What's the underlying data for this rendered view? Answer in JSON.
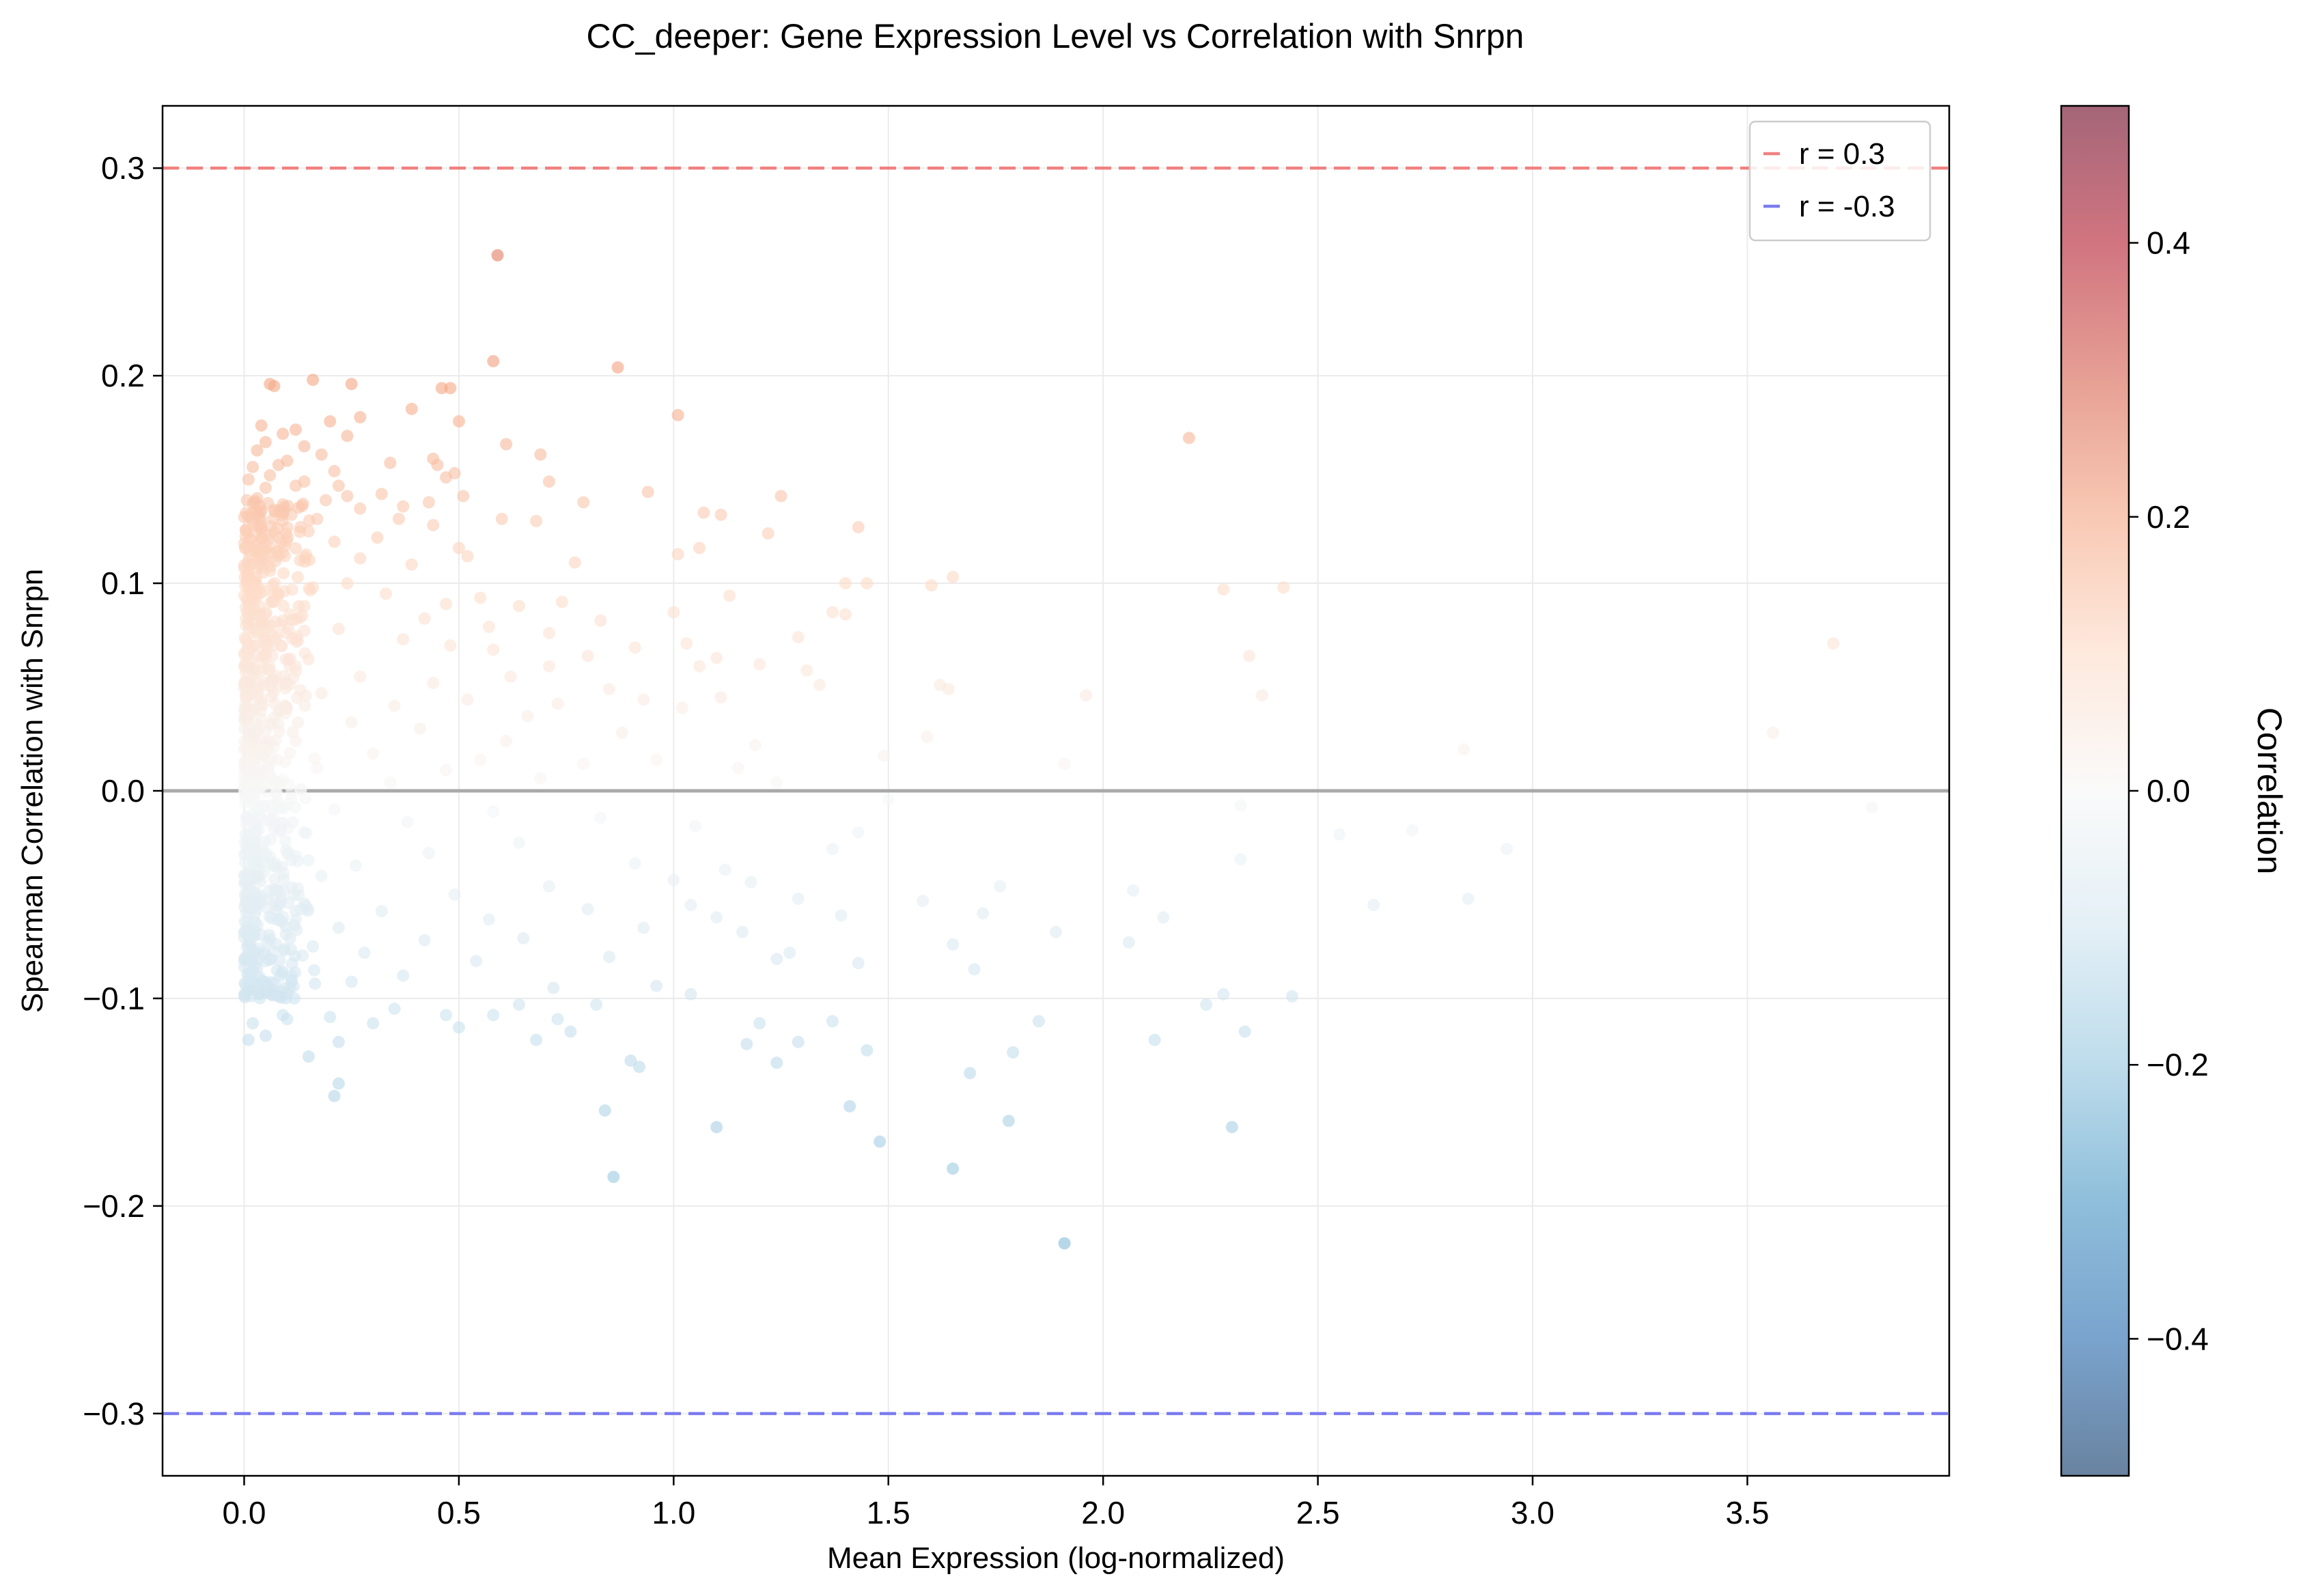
{
  "chart_data": {
    "type": "scatter",
    "title": "CC_deeper: Gene Expression Level vs Correlation with Snrpn",
    "xlabel": "Mean Expression (log-normalized)",
    "ylabel": "Spearman Correlation with Snrpn",
    "xlim": [
      -0.19,
      3.97
    ],
    "ylim": [
      -0.33,
      0.33
    ],
    "xticks": [
      0.0,
      0.5,
      1.0,
      1.5,
      2.0,
      2.5,
      3.0,
      3.5
    ],
    "xtick_labels": [
      "0.0",
      "0.5",
      "1.0",
      "1.5",
      "2.0",
      "2.5",
      "3.0",
      "3.5"
    ],
    "yticks": [
      -0.3,
      -0.2,
      -0.1,
      0.0,
      0.1,
      0.2,
      0.3
    ],
    "ytick_labels": [
      "−0.3",
      "−0.2",
      "−0.1",
      "0.0",
      "0.1",
      "0.2",
      "0.3"
    ],
    "grid": true,
    "reference_lines": [
      {
        "label": "r = 0.3",
        "y": 0.3,
        "color": "#f08080",
        "style": "dashed"
      },
      {
        "label": "r = -0.3",
        "y": -0.3,
        "color": "#7b7bf0",
        "style": "dashed"
      },
      {
        "y": 0.0,
        "color": "#a9a9a9",
        "style": "solid"
      }
    ],
    "legend": {
      "position": "top-right",
      "entries": [
        {
          "label": "r = 0.3",
          "color": "#f08080"
        },
        {
          "label": "r = -0.3",
          "color": "#7b7bf0"
        }
      ]
    },
    "colorbar": {
      "label": "Correlation",
      "colormap": "RdBu_r",
      "range": [
        -0.5,
        0.5
      ],
      "ticks": [
        -0.4,
        -0.2,
        0.0,
        0.2,
        0.4
      ],
      "tick_labels": [
        "−0.4",
        "−0.2",
        "0.0",
        "0.2",
        "0.4"
      ]
    },
    "points": [
      [
        0.59,
        0.258
      ],
      [
        0.58,
        0.207
      ],
      [
        0.87,
        0.204
      ],
      [
        1.01,
        0.181
      ],
      [
        2.2,
        0.17
      ],
      [
        0.06,
        0.196
      ],
      [
        0.07,
        0.195
      ],
      [
        0.16,
        0.198
      ],
      [
        0.25,
        0.196
      ],
      [
        0.46,
        0.194
      ],
      [
        0.48,
        0.194
      ],
      [
        0.39,
        0.184
      ],
      [
        0.5,
        0.178
      ],
      [
        0.27,
        0.18
      ],
      [
        0.2,
        0.178
      ],
      [
        0.04,
        0.176
      ],
      [
        0.12,
        0.174
      ],
      [
        0.09,
        0.172
      ],
      [
        0.24,
        0.171
      ],
      [
        0.61,
        0.167
      ],
      [
        0.05,
        0.168
      ],
      [
        0.14,
        0.166
      ],
      [
        0.03,
        0.164
      ],
      [
        0.18,
        0.162
      ],
      [
        0.69,
        0.162
      ],
      [
        0.44,
        0.16
      ],
      [
        0.45,
        0.157
      ],
      [
        0.34,
        0.158
      ],
      [
        0.1,
        0.159
      ],
      [
        0.08,
        0.157
      ],
      [
        0.02,
        0.156
      ],
      [
        0.21,
        0.154
      ],
      [
        0.49,
        0.153
      ],
      [
        0.06,
        0.152
      ],
      [
        0.14,
        0.149
      ],
      [
        0.47,
        0.151
      ],
      [
        0.71,
        0.149
      ],
      [
        0.22,
        0.147
      ],
      [
        0.01,
        0.15
      ],
      [
        0.12,
        0.147
      ],
      [
        0.05,
        0.146
      ],
      [
        0.94,
        0.144
      ],
      [
        0.32,
        0.143
      ],
      [
        0.24,
        0.142
      ],
      [
        0.19,
        0.14
      ],
      [
        0.03,
        0.141
      ],
      [
        0.51,
        0.142
      ],
      [
        1.25,
        0.142
      ],
      [
        0.79,
        0.139
      ],
      [
        0.43,
        0.139
      ],
      [
        0.37,
        0.137
      ],
      [
        0.27,
        0.136
      ],
      [
        0.09,
        0.138
      ],
      [
        0.36,
        0.131
      ],
      [
        0.04,
        0.135
      ],
      [
        1.07,
        0.134
      ],
      [
        0.11,
        0.133
      ],
      [
        0.17,
        0.131
      ],
      [
        1.11,
        0.133
      ],
      [
        0.6,
        0.131
      ],
      [
        0.68,
        0.13
      ],
      [
        0.02,
        0.13
      ],
      [
        0.44,
        0.128
      ],
      [
        1.43,
        0.127
      ],
      [
        0.15,
        0.125
      ],
      [
        0.31,
        0.122
      ],
      [
        0.5,
        0.117
      ],
      [
        1.22,
        0.124
      ],
      [
        0.08,
        0.122
      ],
      [
        0.21,
        0.12
      ],
      [
        1.06,
        0.117
      ],
      [
        1.01,
        0.114
      ],
      [
        0.52,
        0.113
      ],
      [
        0.05,
        0.117
      ],
      [
        0.13,
        0.111
      ],
      [
        0.27,
        0.112
      ],
      [
        0.77,
        0.11
      ],
      [
        0.39,
        0.109
      ],
      [
        1.65,
        0.103
      ],
      [
        1.4,
        0.1
      ],
      [
        1.45,
        0.1
      ],
      [
        1.6,
        0.099
      ],
      [
        2.28,
        0.097
      ],
      [
        2.42,
        0.098
      ],
      [
        1.13,
        0.094
      ],
      [
        0.74,
        0.091
      ],
      [
        0.55,
        0.093
      ],
      [
        0.64,
        0.089
      ],
      [
        0.06,
        0.106
      ],
      [
        0.01,
        0.104
      ],
      [
        0.16,
        0.098
      ],
      [
        0.24,
        0.1
      ],
      [
        0.33,
        0.095
      ],
      [
        0.47,
        0.09
      ],
      [
        1.37,
        0.086
      ],
      [
        1.4,
        0.085
      ],
      [
        1.0,
        0.086
      ],
      [
        0.83,
        0.082
      ],
      [
        0.14,
        0.089
      ],
      [
        0.03,
        0.094
      ],
      [
        0.71,
        0.076
      ],
      [
        0.57,
        0.079
      ],
      [
        0.42,
        0.083
      ],
      [
        1.29,
        0.074
      ],
      [
        0.91,
        0.069
      ],
      [
        1.03,
        0.071
      ],
      [
        0.58,
        0.068
      ],
      [
        3.7,
        0.071
      ],
      [
        2.34,
        0.065
      ],
      [
        1.1,
        0.064
      ],
      [
        0.8,
        0.065
      ],
      [
        0.22,
        0.078
      ],
      [
        0.09,
        0.082
      ],
      [
        0.37,
        0.073
      ],
      [
        0.48,
        0.07
      ],
      [
        1.06,
        0.06
      ],
      [
        1.31,
        0.058
      ],
      [
        1.2,
        0.061
      ],
      [
        0.71,
        0.06
      ],
      [
        0.62,
        0.055
      ],
      [
        1.62,
        0.051
      ],
      [
        1.64,
        0.049
      ],
      [
        1.34,
        0.051
      ],
      [
        0.85,
        0.049
      ],
      [
        2.37,
        0.046
      ],
      [
        1.96,
        0.046
      ],
      [
        0.93,
        0.044
      ],
      [
        0.27,
        0.055
      ],
      [
        0.05,
        0.066
      ],
      [
        0.12,
        0.06
      ],
      [
        0.44,
        0.052
      ],
      [
        1.02,
        0.04
      ],
      [
        0.73,
        0.042
      ],
      [
        1.11,
        0.045
      ],
      [
        0.52,
        0.044
      ],
      [
        0.18,
        0.047
      ],
      [
        0.35,
        0.041
      ],
      [
        0.66,
        0.036
      ],
      [
        1.59,
        0.026
      ],
      [
        3.56,
        0.028
      ],
      [
        2.84,
        0.02
      ],
      [
        1.49,
        0.017
      ],
      [
        1.91,
        0.013
      ],
      [
        0.88,
        0.028
      ],
      [
        1.19,
        0.022
      ],
      [
        0.61,
        0.024
      ],
      [
        0.41,
        0.03
      ],
      [
        0.03,
        0.045
      ],
      [
        0.08,
        0.038
      ],
      [
        0.25,
        0.033
      ],
      [
        0.96,
        0.015
      ],
      [
        1.15,
        0.011
      ],
      [
        0.79,
        0.013
      ],
      [
        0.55,
        0.015
      ],
      [
        0.12,
        0.024
      ],
      [
        0.02,
        0.02
      ],
      [
        0.3,
        0.018
      ],
      [
        0.69,
        0.006
      ],
      [
        0.47,
        0.01
      ],
      [
        1.24,
        0.004
      ],
      [
        0.17,
        0.011
      ],
      [
        0.06,
        0.008
      ],
      [
        0.34,
        0.004
      ],
      [
        1.5,
        -0.004
      ],
      [
        2.32,
        -0.007
      ],
      [
        3.79,
        -0.008
      ],
      [
        2.55,
        -0.021
      ],
      [
        2.72,
        -0.019
      ],
      [
        2.94,
        -0.028
      ],
      [
        1.43,
        -0.02
      ],
      [
        1.05,
        -0.017
      ],
      [
        0.83,
        -0.013
      ],
      [
        0.58,
        -0.01
      ],
      [
        0.08,
        -0.006
      ],
      [
        0.21,
        -0.009
      ],
      [
        0.02,
        -0.012
      ],
      [
        0.38,
        -0.015
      ],
      [
        0.64,
        -0.025
      ],
      [
        0.91,
        -0.035
      ],
      [
        1.12,
        -0.038
      ],
      [
        0.43,
        -0.03
      ],
      [
        0.14,
        -0.02
      ],
      [
        0.26,
        -0.036
      ],
      [
        0.05,
        -0.03
      ],
      [
        1.37,
        -0.028
      ],
      [
        2.32,
        -0.033
      ],
      [
        0.71,
        -0.046
      ],
      [
        0.49,
        -0.05
      ],
      [
        0.18,
        -0.041
      ],
      [
        1.0,
        -0.043
      ],
      [
        1.18,
        -0.044
      ],
      [
        1.29,
        -0.052
      ],
      [
        0.32,
        -0.058
      ],
      [
        0.08,
        -0.048
      ],
      [
        0.03,
        -0.055
      ],
      [
        1.58,
        -0.053
      ],
      [
        1.76,
        -0.046
      ],
      [
        2.07,
        -0.048
      ],
      [
        2.63,
        -0.055
      ],
      [
        2.85,
        -0.052
      ],
      [
        0.57,
        -0.062
      ],
      [
        0.8,
        -0.057
      ],
      [
        1.04,
        -0.055
      ],
      [
        0.22,
        -0.066
      ],
      [
        0.12,
        -0.062
      ],
      [
        1.1,
        -0.061
      ],
      [
        1.39,
        -0.06
      ],
      [
        1.72,
        -0.059
      ],
      [
        2.14,
        -0.061
      ],
      [
        0.42,
        -0.072
      ],
      [
        0.65,
        -0.071
      ],
      [
        0.93,
        -0.066
      ],
      [
        1.16,
        -0.068
      ],
      [
        1.27,
        -0.078
      ],
      [
        0.01,
        -0.068
      ],
      [
        0.16,
        -0.075
      ],
      [
        0.28,
        -0.078
      ],
      [
        1.65,
        -0.074
      ],
      [
        1.89,
        -0.068
      ],
      [
        2.06,
        -0.073
      ],
      [
        0.05,
        -0.082
      ],
      [
        0.54,
        -0.082
      ],
      [
        0.85,
        -0.08
      ],
      [
        1.24,
        -0.081
      ],
      [
        1.43,
        -0.083
      ],
      [
        0.37,
        -0.089
      ],
      [
        0.11,
        -0.089
      ],
      [
        1.7,
        -0.086
      ],
      [
        0.25,
        -0.092
      ],
      [
        0.03,
        -0.096
      ],
      [
        0.72,
        -0.095
      ],
      [
        0.96,
        -0.094
      ],
      [
        1.04,
        -0.098
      ],
      [
        0.82,
        -0.103
      ],
      [
        0.64,
        -0.103
      ],
      [
        0.47,
        -0.108
      ],
      [
        0.35,
        -0.105
      ],
      [
        0.2,
        -0.109
      ],
      [
        0.09,
        -0.108
      ],
      [
        2.24,
        -0.103
      ],
      [
        2.28,
        -0.098
      ],
      [
        2.44,
        -0.099
      ],
      [
        0.02,
        -0.112
      ],
      [
        0.1,
        -0.11
      ],
      [
        0.58,
        -0.108
      ],
      [
        0.73,
        -0.11
      ],
      [
        1.2,
        -0.112
      ],
      [
        1.37,
        -0.111
      ],
      [
        1.85,
        -0.111
      ],
      [
        0.3,
        -0.112
      ],
      [
        0.05,
        -0.118
      ],
      [
        0.68,
        -0.12
      ],
      [
        0.76,
        -0.116
      ],
      [
        0.5,
        -0.114
      ],
      [
        0.01,
        -0.12
      ],
      [
        0.22,
        -0.121
      ],
      [
        2.12,
        -0.12
      ],
      [
        2.33,
        -0.116
      ],
      [
        1.17,
        -0.122
      ],
      [
        1.29,
        -0.121
      ],
      [
        1.45,
        -0.125
      ],
      [
        1.79,
        -0.126
      ],
      [
        0.15,
        -0.128
      ],
      [
        0.9,
        -0.13
      ],
      [
        0.92,
        -0.133
      ],
      [
        1.24,
        -0.131
      ],
      [
        1.69,
        -0.136
      ],
      [
        0.22,
        -0.141
      ],
      [
        0.21,
        -0.147
      ],
      [
        1.41,
        -0.152
      ],
      [
        0.84,
        -0.154
      ],
      [
        1.78,
        -0.159
      ],
      [
        2.3,
        -0.162
      ],
      [
        1.1,
        -0.162
      ],
      [
        1.48,
        -0.169
      ],
      [
        1.65,
        -0.182
      ],
      [
        0.86,
        -0.186
      ],
      [
        1.91,
        -0.218
      ]
    ]
  }
}
